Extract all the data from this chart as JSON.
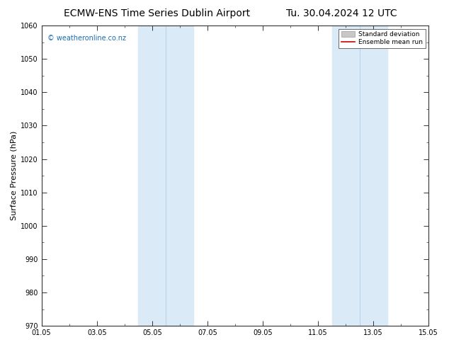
{
  "title_left": "ECMW-ENS Time Series Dublin Airport",
  "title_right": "Tu. 30.04.2024 12 UTC",
  "ylabel": "Surface Pressure (hPa)",
  "ylim": [
    970,
    1060
  ],
  "yticks": [
    970,
    980,
    990,
    1000,
    1010,
    1020,
    1030,
    1040,
    1050,
    1060
  ],
  "xtick_labels": [
    "01.05",
    "03.05",
    "05.05",
    "07.05",
    "09.05",
    "11.05",
    "13.05",
    "15.05"
  ],
  "xtick_positions": [
    0,
    2,
    4,
    6,
    8,
    10,
    12,
    14
  ],
  "xlim": [
    0,
    14
  ],
  "shaded_regions": [
    {
      "xmin": 3.5,
      "xmax": 4.5,
      "color": "#daeaf7"
    },
    {
      "xmin": 4.5,
      "xmax": 5.5,
      "color": "#daeaf7"
    },
    {
      "xmin": 10.5,
      "xmax": 11.5,
      "color": "#daeaf7"
    },
    {
      "xmin": 11.5,
      "xmax": 12.5,
      "color": "#daeaf7"
    }
  ],
  "divider_lines": [
    4.5,
    11.5
  ],
  "divider_color": "#b8d4ea",
  "ensemble_mean_color": "#cc0000",
  "std_dev_color": "#c8c8c8",
  "background_color": "#ffffff",
  "plot_bg_color": "#ffffff",
  "watermark_text": "© weatheronline.co.nz",
  "watermark_color": "#1a6cb5",
  "legend_std_label": "Standard deviation",
  "legend_mean_label": "Ensemble mean run",
  "title_fontsize": 10,
  "tick_label_fontsize": 7,
  "ylabel_fontsize": 8
}
